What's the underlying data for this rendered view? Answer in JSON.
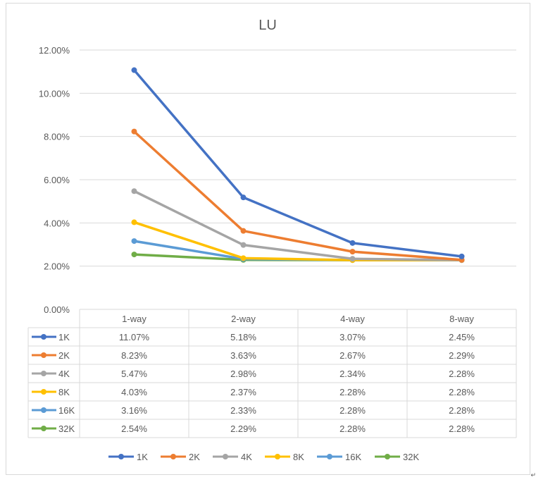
{
  "chart_data": {
    "type": "line",
    "title": "LU",
    "categories": [
      "1-way",
      "2-way",
      "4-way",
      "8-way"
    ],
    "ylim": [
      0,
      12
    ],
    "y_tick_values": [
      0,
      2,
      4,
      6,
      8,
      10,
      12
    ],
    "y_tick_labels": [
      "0.00%",
      "2.00%",
      "4.00%",
      "6.00%",
      "8.00%",
      "10.00%",
      "12.00%"
    ],
    "grid": true,
    "legend_position": "bottom",
    "data_table": true,
    "series": [
      {
        "name": "1K",
        "color": "#4472C4",
        "values": [
          11.07,
          5.18,
          3.07,
          2.45
        ],
        "labels": [
          "11.07%",
          "5.18%",
          "3.07%",
          "2.45%"
        ]
      },
      {
        "name": "2K",
        "color": "#ED7D31",
        "values": [
          8.23,
          3.63,
          2.67,
          2.29
        ],
        "labels": [
          "8.23%",
          "3.63%",
          "2.67%",
          "2.29%"
        ]
      },
      {
        "name": "4K",
        "color": "#A5A5A5",
        "values": [
          5.47,
          2.98,
          2.34,
          2.28
        ],
        "labels": [
          "5.47%",
          "2.98%",
          "2.34%",
          "2.28%"
        ]
      },
      {
        "name": "8K",
        "color": "#FFC000",
        "values": [
          4.03,
          2.37,
          2.28,
          2.28
        ],
        "labels": [
          "4.03%",
          "2.37%",
          "2.28%",
          "2.28%"
        ]
      },
      {
        "name": "16K",
        "color": "#5B9BD5",
        "values": [
          3.16,
          2.33,
          2.28,
          2.28
        ],
        "labels": [
          "3.16%",
          "2.33%",
          "2.28%",
          "2.28%"
        ]
      },
      {
        "name": "32K",
        "color": "#70AD47",
        "values": [
          2.54,
          2.29,
          2.28,
          2.28
        ],
        "labels": [
          "2.54%",
          "2.29%",
          "2.28%",
          "2.28%"
        ]
      }
    ]
  },
  "corner_mark": "↵"
}
